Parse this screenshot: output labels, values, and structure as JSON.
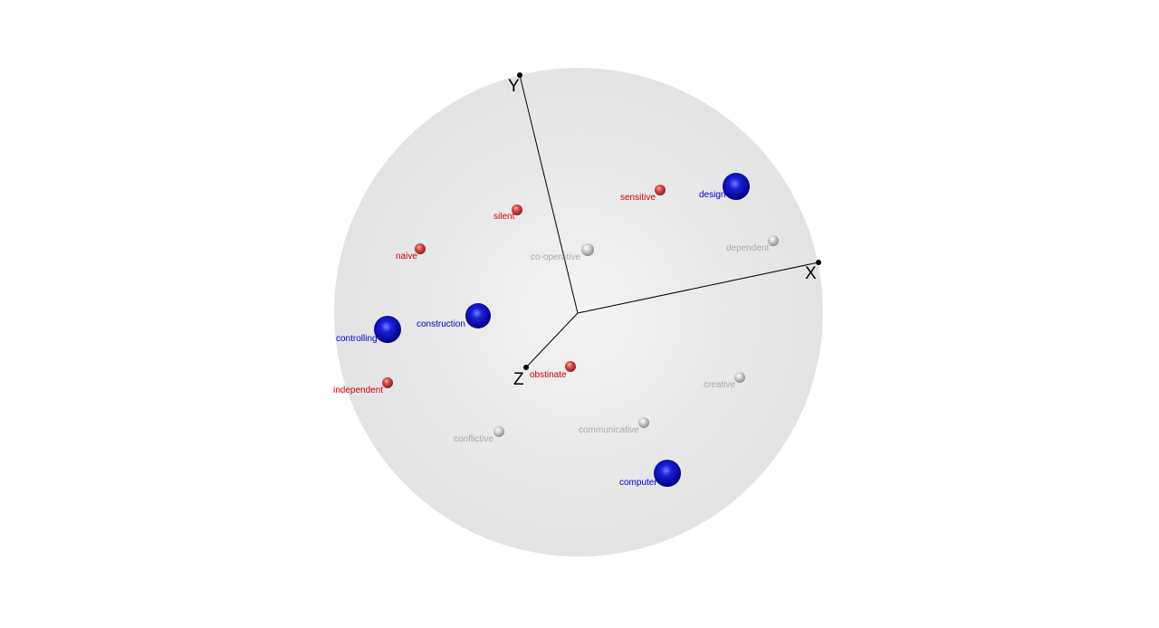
{
  "scene": {
    "background": "#ffffff",
    "sphere_fill": "#e6e6e6",
    "axis_color": "#000000"
  },
  "axes": {
    "x_label": "X",
    "y_label": "Y",
    "z_label": "Z"
  },
  "categories": {
    "element": {
      "color": "#0000cc",
      "label_color": "#0000cc"
    },
    "construct_red": {
      "color": "#d24545",
      "label_color": "#cc0000"
    },
    "construct_grey": {
      "color": "#bdbdbd",
      "label_color": "#a8a8a8"
    }
  },
  "points": [
    {
      "label": "design",
      "category": "element"
    },
    {
      "label": "construction",
      "category": "element"
    },
    {
      "label": "controlling",
      "category": "element"
    },
    {
      "label": "computer",
      "category": "element"
    },
    {
      "label": "sensitive",
      "category": "construct_red"
    },
    {
      "label": "silent",
      "category": "construct_red"
    },
    {
      "label": "naive",
      "category": "construct_red"
    },
    {
      "label": "obstinate",
      "category": "construct_red"
    },
    {
      "label": "independent",
      "category": "construct_red"
    },
    {
      "label": "co-operative",
      "category": "construct_grey"
    },
    {
      "label": "dependent",
      "category": "construct_grey"
    },
    {
      "label": "creative",
      "category": "construct_grey"
    },
    {
      "label": "communicative",
      "category": "construct_grey"
    },
    {
      "label": "conflictive",
      "category": "construct_grey"
    }
  ]
}
